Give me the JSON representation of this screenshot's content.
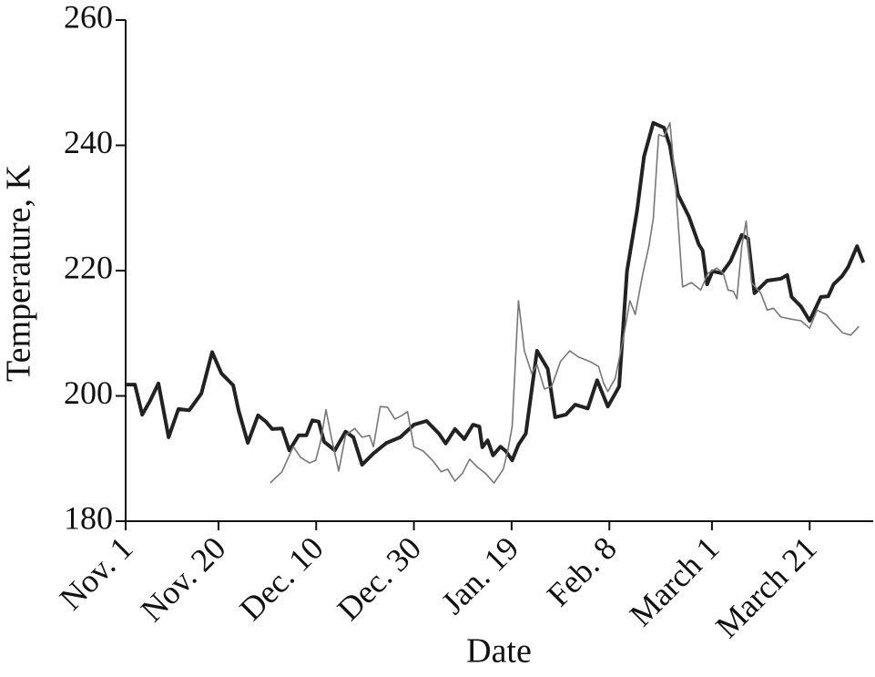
{
  "chart_data": {
    "type": "line",
    "x_label": "Date",
    "y_label": "Temperature, K",
    "xlim": [
      0,
      153
    ],
    "ylim": [
      180,
      260
    ],
    "xticks": [
      {
        "value": 0,
        "label": "Nov. 1"
      },
      {
        "value": 19,
        "label": "Nov. 20"
      },
      {
        "value": 39,
        "label": "Dec. 10"
      },
      {
        "value": 59,
        "label": "Dec. 30"
      },
      {
        "value": 79,
        "label": "Jan. 19"
      },
      {
        "value": 99,
        "label": "Feb. 8"
      },
      {
        "value": 120,
        "label": "March 1"
      },
      {
        "value": 140,
        "label": "March 21"
      }
    ],
    "yticks": [
      180,
      200,
      220,
      240,
      260
    ],
    "grid": false,
    "series": [
      {
        "color": "#222222",
        "x": [
          0,
          1.9,
          3.4,
          5,
          6.7,
          8.8,
          10.8,
          13,
          15.5,
          17.7,
          19.6,
          22,
          23.1,
          25,
          27.1,
          28.7,
          30,
          32,
          33.5,
          35.4,
          37,
          38.2,
          39.5,
          40.6,
          42.8,
          45,
          46.6,
          48.4,
          50.7,
          53.4,
          56.2,
          59,
          61.6,
          64.1,
          65.5,
          67.4,
          69.3,
          71.1,
          72.4,
          73,
          74.1,
          75.2,
          76.7,
          77.8,
          79.1,
          80.4,
          81.9,
          84.2,
          86.4,
          87.9,
          90.1,
          92,
          94.6,
          96.5,
          98.7,
          101,
          102.6,
          104.7,
          106.1,
          108,
          110.2,
          111.4,
          113,
          115.3,
          117.3,
          118.1,
          119,
          120.1,
          122,
          123.8,
          126.1,
          127.4,
          128.7,
          131.3,
          134.1,
          135.4,
          136.3,
          138.2,
          140,
          142.3,
          143.8,
          144.9,
          146.6,
          147.9,
          149.7,
          151
        ],
        "values": [
          201.8,
          201.8,
          197,
          199.2,
          202,
          193.4,
          197.9,
          197.7,
          200.4,
          207,
          203.6,
          201.7,
          197.7,
          192.5,
          196.9,
          195.9,
          194.7,
          194.8,
          191.3,
          193.7,
          193.7,
          196.1,
          195.9,
          192.7,
          191.3,
          194.3,
          193.4,
          189,
          190.8,
          192.5,
          193.4,
          195.4,
          196,
          194,
          192.4,
          194.7,
          193.1,
          195.4,
          195.1,
          191.8,
          192.9,
          190.5,
          191.9,
          191.2,
          189.7,
          192.2,
          194,
          207.2,
          204.3,
          196.6,
          197,
          198.6,
          198,
          202.5,
          198.3,
          201.5,
          219.9,
          229.7,
          238.2,
          243.6,
          242.8,
          239.9,
          232.2,
          228.6,
          224.2,
          223.2,
          217.8,
          219.9,
          219.6,
          221.5,
          225.7,
          225.1,
          216.4,
          218.4,
          218.7,
          219.3,
          215.8,
          214.3,
          212,
          215.8,
          215.9,
          217.8,
          219.1,
          220.6,
          223.9,
          221.3
        ]
      },
      {
        "color": "#777777",
        "x": [
          29.6,
          32,
          34.3,
          35.8,
          37.6,
          38.9,
          39.9,
          41,
          42.1,
          43.6,
          45,
          46.9,
          48.4,
          49.9,
          50.7,
          52.1,
          53.6,
          55.1,
          56.6,
          57.7,
          59,
          60.9,
          62.8,
          64.6,
          65.9,
          67.4,
          68.9,
          70.4,
          71.9,
          73.7,
          75.4,
          77.3,
          78.2,
          79.1,
          80.4,
          81.6,
          83.1,
          84.2,
          85.7,
          87.2,
          89,
          90.9,
          92.7,
          95,
          96.8,
          97.8,
          98.7,
          100.2,
          101.7,
          103.2,
          104.3,
          105.8,
          107.1,
          108,
          109.1,
          110.2,
          111.4,
          112.5,
          114,
          115.8,
          117.7,
          119.2,
          121,
          122.3,
          123.3,
          124.4,
          125.1,
          126.1,
          127,
          128.1,
          130,
          131.3,
          132.6,
          134.1,
          135.9,
          138.2,
          140,
          141.5,
          143.4,
          144.9,
          146.7,
          148.4,
          150.1
        ],
        "values": [
          186.1,
          187.9,
          191.9,
          190.2,
          189.3,
          189.7,
          192.7,
          197.8,
          193.4,
          188,
          193.7,
          194.8,
          193.4,
          193.7,
          191.9,
          198.3,
          198.2,
          196.3,
          196.9,
          197.5,
          191.9,
          191.2,
          189.7,
          187.9,
          188.3,
          186.4,
          187.6,
          189.9,
          188.7,
          187.6,
          186.1,
          188.3,
          191.2,
          195.1,
          215.2,
          207.2,
          203.6,
          205,
          201.1,
          201.5,
          205.5,
          207.2,
          206.2,
          205.5,
          204.7,
          202.1,
          200.7,
          202.8,
          208.5,
          215.2,
          213,
          219.3,
          223.9,
          228.3,
          241.7,
          241.4,
          243.6,
          234.1,
          217.4,
          218.1,
          216.9,
          219.6,
          220.4,
          219.6,
          216.9,
          216.7,
          215.5,
          223.9,
          227.9,
          218.1,
          216.4,
          213.7,
          214,
          212.6,
          212.3,
          212,
          210.8,
          213.7,
          213,
          211.6,
          210.1,
          209.7,
          211.1
        ]
      }
    ]
  }
}
